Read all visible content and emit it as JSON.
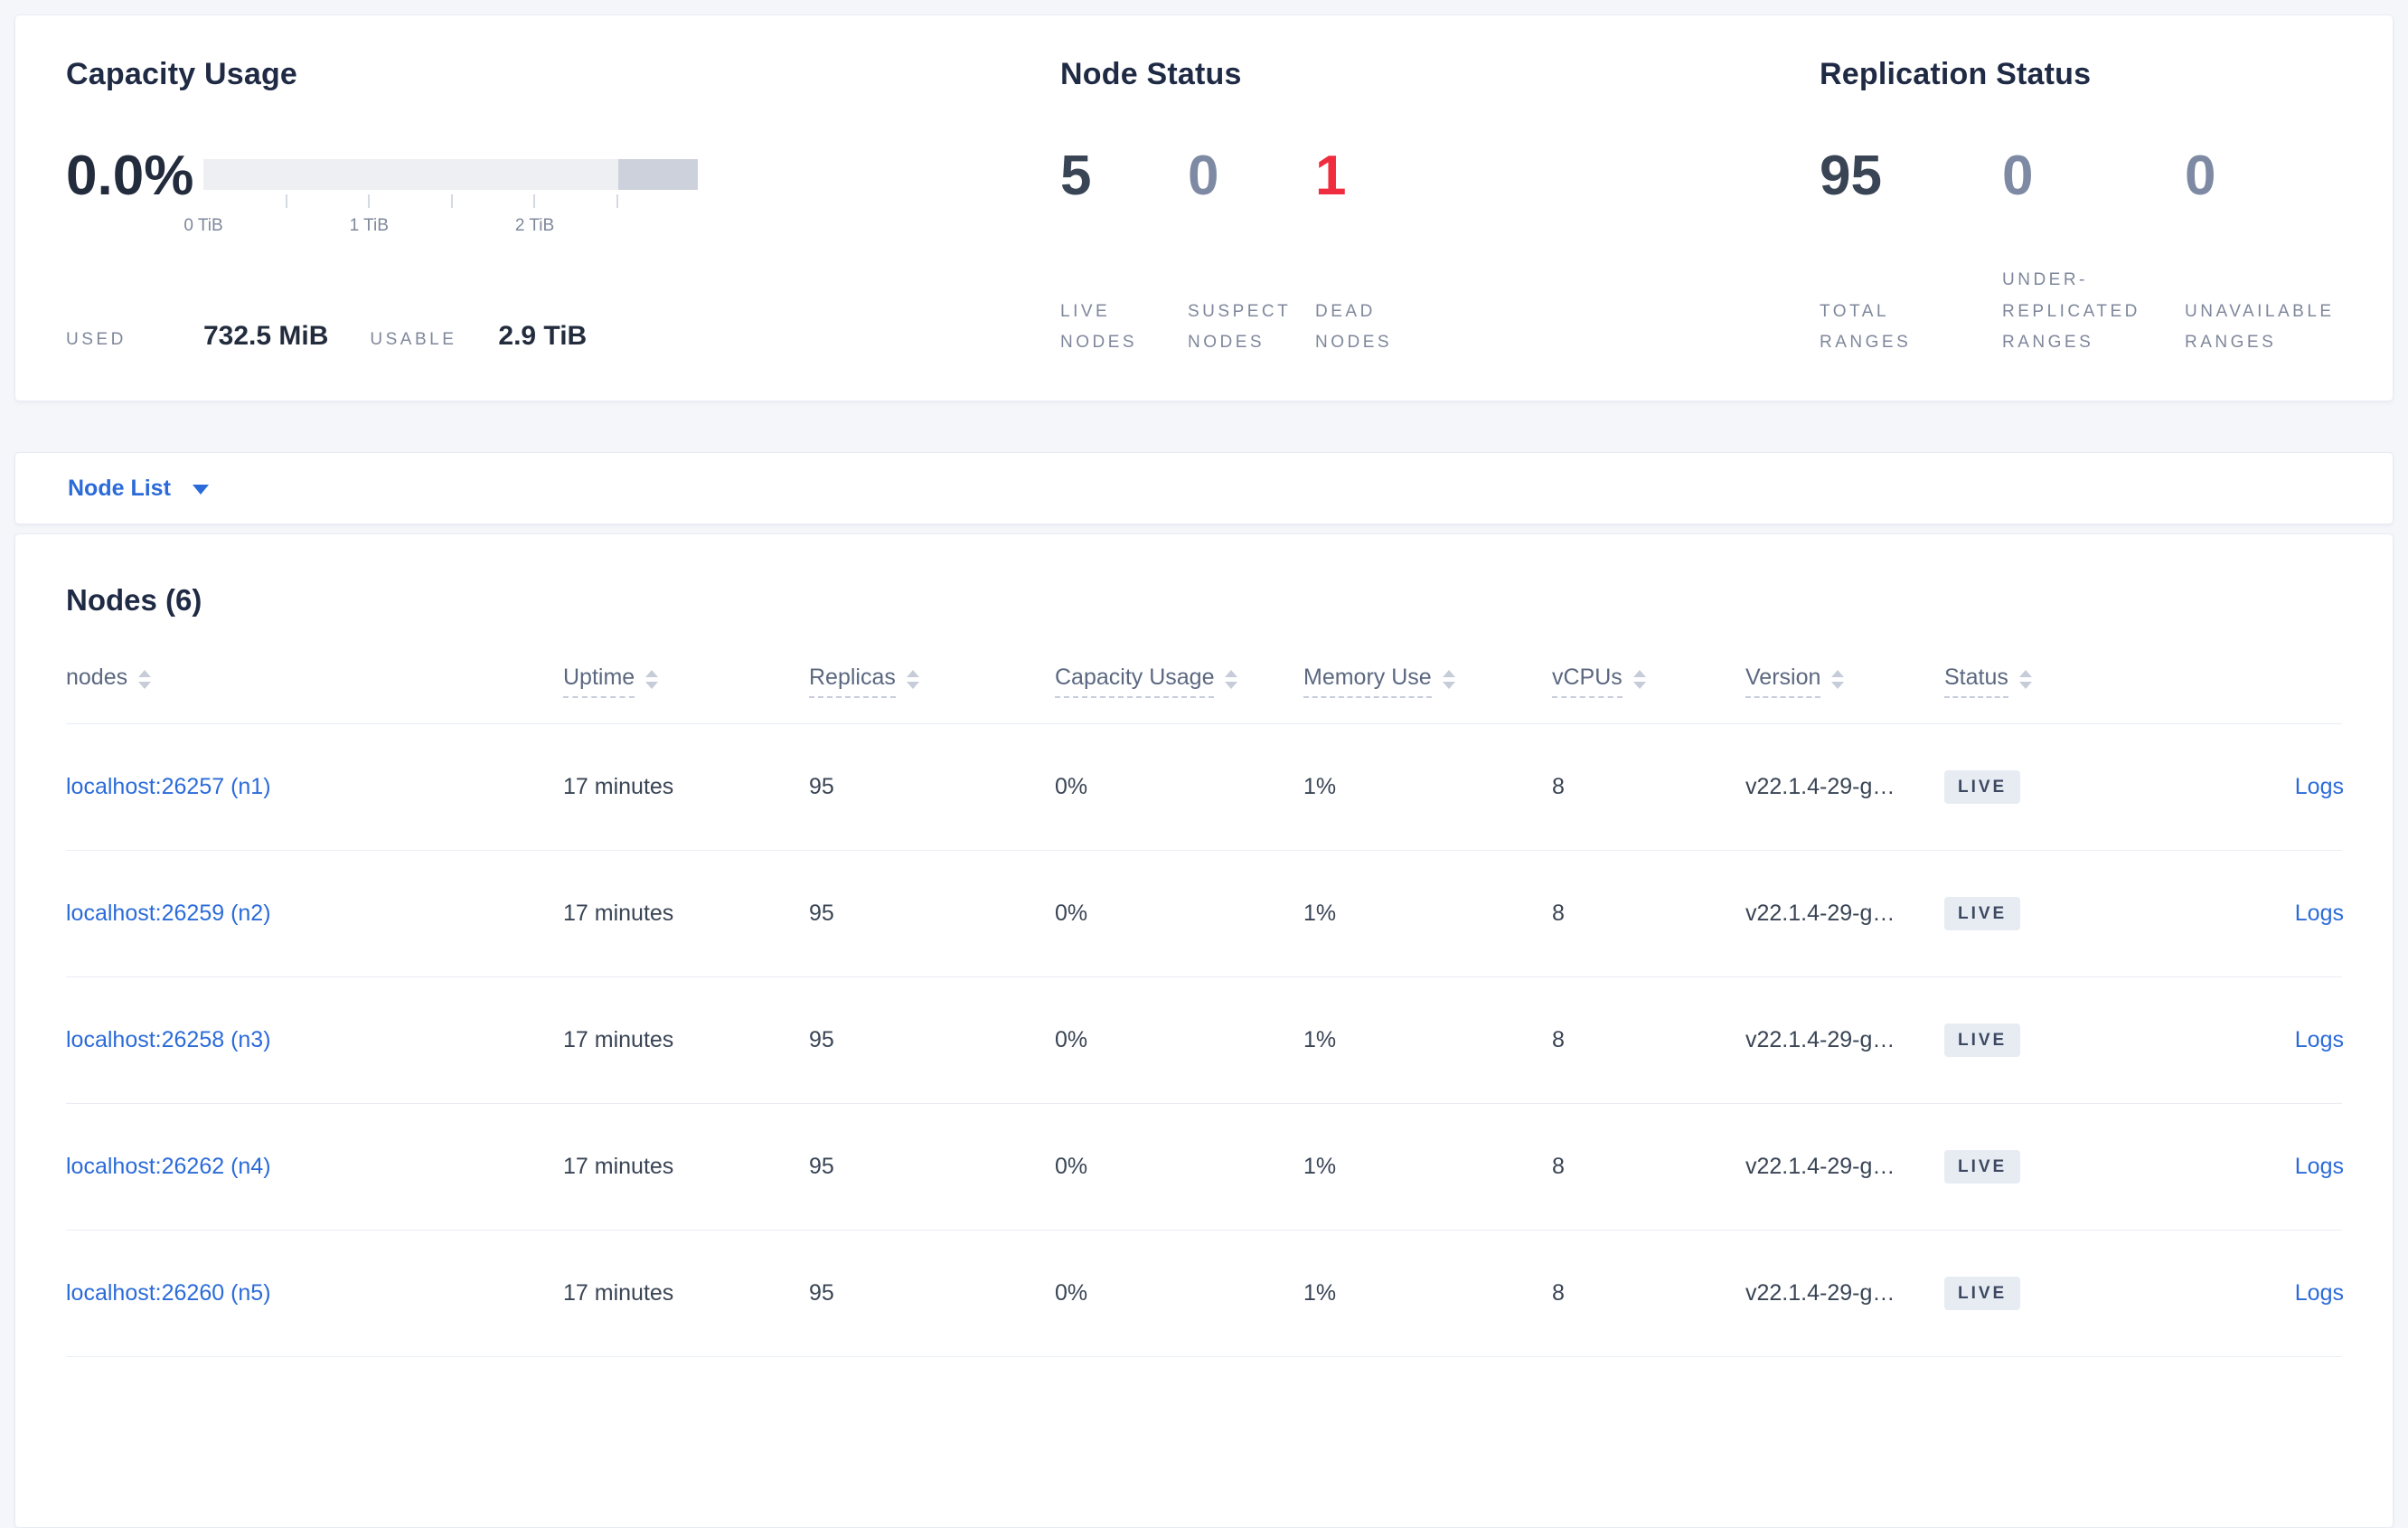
{
  "summary": {
    "capacity": {
      "title": "Capacity Usage",
      "percent": "0.0%",
      "axis_ticks": [
        "0 TiB",
        "1 TiB",
        "2 TiB"
      ],
      "used_label": "USED",
      "used_value": "732.5 MiB",
      "usable_label": "USABLE",
      "usable_value": "2.9 TiB"
    },
    "node_status": {
      "title": "Node Status",
      "stats": [
        {
          "name": "live-nodes",
          "value": "5",
          "label": "LIVE NODES",
          "tone": "dark"
        },
        {
          "name": "suspect-nodes",
          "value": "0",
          "label": "SUSPECT NODES",
          "tone": "muted"
        },
        {
          "name": "dead-nodes",
          "value": "1",
          "label": "DEAD NODES",
          "tone": "red"
        }
      ]
    },
    "replication": {
      "title": "Replication Status",
      "stats": [
        {
          "name": "total-ranges",
          "value": "95",
          "label": "TOTAL RANGES",
          "tone": "dark"
        },
        {
          "name": "under-replicated-ranges",
          "value": "0",
          "label": "UNDER-REPLICATED RANGES",
          "tone": "muted"
        },
        {
          "name": "unavailable-ranges",
          "value": "0",
          "label": "UNAVAILABLE RANGES",
          "tone": "muted"
        }
      ]
    }
  },
  "view_selector": {
    "label": "Node List"
  },
  "nodes_section": {
    "heading": "Nodes (6)",
    "columns": [
      {
        "label": "nodes",
        "underlined": false
      },
      {
        "label": "Uptime",
        "underlined": true
      },
      {
        "label": "Replicas",
        "underlined": true
      },
      {
        "label": "Capacity Usage",
        "underlined": true
      },
      {
        "label": "Memory Use",
        "underlined": true
      },
      {
        "label": "vCPUs",
        "underlined": true
      },
      {
        "label": "Version",
        "underlined": true
      },
      {
        "label": "Status",
        "underlined": true
      }
    ],
    "rows": [
      {
        "node": "localhost:26257 (n1)",
        "uptime": "17 minutes",
        "replicas": "95",
        "capacity": "0%",
        "memory": "1%",
        "vcpus": "8",
        "version": "v22.1.4-29-g…",
        "status": "LIVE",
        "logs": "Logs"
      },
      {
        "node": "localhost:26259 (n2)",
        "uptime": "17 minutes",
        "replicas": "95",
        "capacity": "0%",
        "memory": "1%",
        "vcpus": "8",
        "version": "v22.1.4-29-g…",
        "status": "LIVE",
        "logs": "Logs"
      },
      {
        "node": "localhost:26258 (n3)",
        "uptime": "17 minutes",
        "replicas": "95",
        "capacity": "0%",
        "memory": "1%",
        "vcpus": "8",
        "version": "v22.1.4-29-g…",
        "status": "LIVE",
        "logs": "Logs"
      },
      {
        "node": "localhost:26262 (n4)",
        "uptime": "17 minutes",
        "replicas": "95",
        "capacity": "0%",
        "memory": "1%",
        "vcpus": "8",
        "version": "v22.1.4-29-g…",
        "status": "LIVE",
        "logs": "Logs"
      },
      {
        "node": "localhost:26260 (n5)",
        "uptime": "17 minutes",
        "replicas": "95",
        "capacity": "0%",
        "memory": "1%",
        "vcpus": "8",
        "version": "v22.1.4-29-g…",
        "status": "LIVE",
        "logs": "Logs"
      }
    ]
  },
  "colors": {
    "link_blue": "#2b6bd9",
    "dead_red": "#f02d3f",
    "muted_value": "#7e89a3",
    "dark_text": "#394455",
    "badge_bg": "#e7ecf3",
    "page_bg": "#f4f6fa"
  }
}
